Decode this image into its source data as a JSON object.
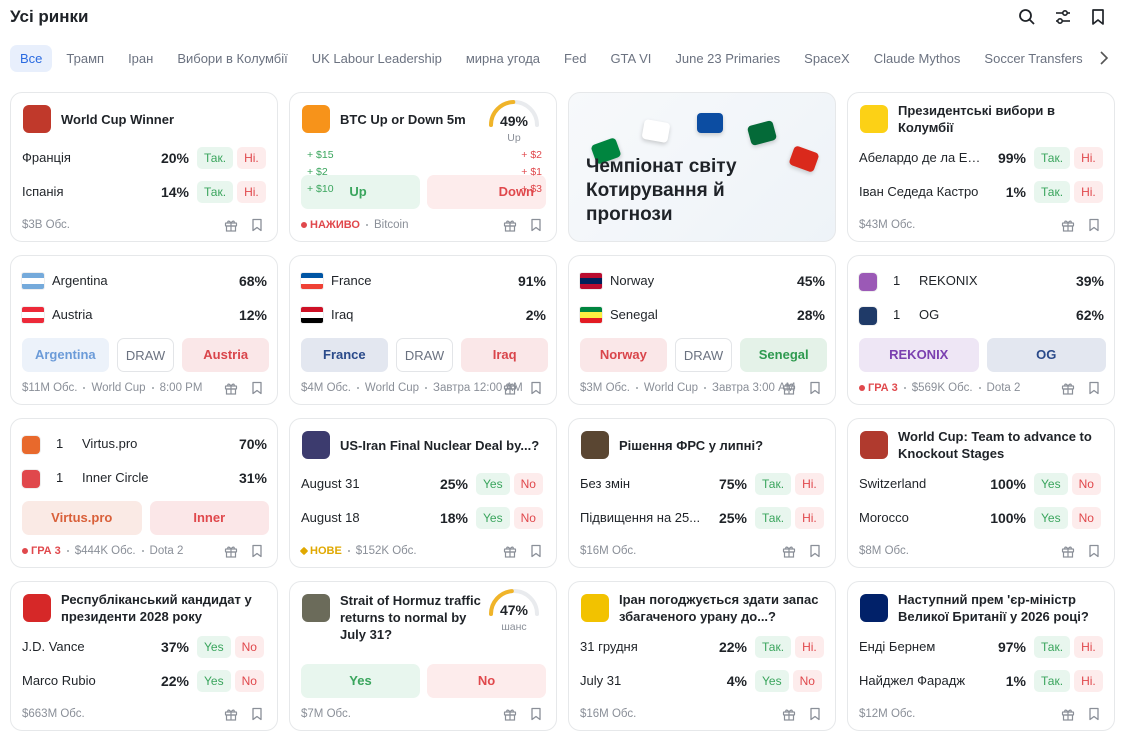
{
  "header": {
    "title": "Усі ринки"
  },
  "tabs": [
    "Все",
    "Трамп",
    "Іран",
    "Вибори в Колумбії",
    "UK Labour Leadership",
    "мирна угода",
    "Fed",
    "GTA VI",
    "June 23 Primaries",
    "SpaceX",
    "Claude Mythos",
    "Soccer Transfers"
  ],
  "cards": [
    {
      "kind": "binary",
      "title": "World Cup Winner",
      "icon": "#c0392b",
      "outcomes": [
        {
          "name": "Франція",
          "chance": "20%",
          "yes": "Так.",
          "no": "Ні."
        },
        {
          "name": "Іспанія",
          "chance": "14%",
          "yes": "Так.",
          "no": "Ні."
        }
      ],
      "footer": {
        "volume": "$3B Обс."
      }
    },
    {
      "kind": "updown",
      "title": "BTC Up or Down 5m",
      "icon": "#f7931a",
      "gauge": {
        "value": 49,
        "label": "49%",
        "caption": "Up",
        "color": "#f0b429"
      },
      "up": {
        "amounts": [
          "+ $15",
          "+ $2",
          "+ $10"
        ],
        "label": "Up"
      },
      "down": {
        "amounts": [
          "+ $2",
          "+ $1",
          "+ $3"
        ],
        "label": "Down"
      },
      "footer": {
        "badge": {
          "text": "НАЖИВО",
          "color": "#e0484c"
        },
        "tags": [
          "Bitcoin"
        ]
      }
    },
    {
      "kind": "banner",
      "title": "Чемпіонат світу Котирування й прогнози"
    },
    {
      "kind": "binary",
      "title": "Президентські вибори в Колумбії",
      "icon": "#fcd116",
      "outcomes": [
        {
          "name": "Абелардо де ла Есп...",
          "chance": "99%",
          "yes": "Так.",
          "no": "Ні."
        },
        {
          "name": "Іван Седеда Кастро",
          "chance": "1%",
          "yes": "Так.",
          "no": "Ні."
        }
      ],
      "footer": {
        "volume": "$43M Обс."
      }
    },
    {
      "kind": "match",
      "teams": [
        {
          "name": "Argentina",
          "chance": "68%",
          "flag": [
            "#75aadb",
            "#ffffff",
            "#75aadb"
          ]
        },
        {
          "name": "Austria",
          "chance": "12%",
          "flag": [
            "#ed2939",
            "#ffffff",
            "#ed2939"
          ]
        }
      ],
      "buttons": [
        {
          "label": "Argentina",
          "color": "#6b9bd8"
        },
        {
          "label": "DRAW",
          "color": "#6b7280"
        },
        {
          "label": "Austria",
          "color": "#d9454b"
        }
      ],
      "footer": {
        "volume": "$11M Обс.",
        "tags": [
          "World Cup",
          "8:00 PM"
        ]
      }
    },
    {
      "kind": "match",
      "teams": [
        {
          "name": "France",
          "chance": "91%",
          "flag": [
            "#0055a4",
            "#ffffff",
            "#ef4135"
          ]
        },
        {
          "name": "Iraq",
          "chance": "2%",
          "flag": [
            "#ce1126",
            "#ffffff",
            "#000000"
          ]
        }
      ],
      "buttons": [
        {
          "label": "France",
          "color": "#2a4a8a"
        },
        {
          "label": "DRAW",
          "color": "#6b7280"
        },
        {
          "label": "Iraq",
          "color": "#d9454b"
        }
      ],
      "footer": {
        "volume": "$4M Обс.",
        "tags": [
          "World Cup",
          "Завтра 12:00 AM"
        ]
      }
    },
    {
      "kind": "match",
      "teams": [
        {
          "name": "Norway",
          "chance": "45%",
          "flag": [
            "#ba0c2f",
            "#00205b",
            "#ba0c2f"
          ]
        },
        {
          "name": "Senegal",
          "chance": "28%",
          "flag": [
            "#00853f",
            "#fdef42",
            "#e31b23"
          ]
        }
      ],
      "buttons": [
        {
          "label": "Norway",
          "color": "#d9454b"
        },
        {
          "label": "DRAW",
          "color": "#6b7280"
        },
        {
          "label": "Senegal",
          "color": "#2e9a4f"
        }
      ],
      "footer": {
        "volume": "$3M Обс.",
        "tags": [
          "World Cup",
          "Завтра 3:00 AM"
        ]
      }
    },
    {
      "kind": "match",
      "teams": [
        {
          "name": "REKONIX",
          "seed": "1",
          "chance": "39%",
          "flag": [
            "#9b59b6"
          ]
        },
        {
          "name": "OG",
          "seed": "1",
          "chance": "62%",
          "flag": [
            "#1f3a68"
          ]
        }
      ],
      "buttons": [
        {
          "label": "REKONIX",
          "color": "#7a3fb0"
        },
        {
          "label": "OG",
          "color": "#2a4a8a"
        }
      ],
      "footer": {
        "badge": {
          "text": "ГРА 3",
          "color": "#e0484c"
        },
        "volume": "$569K Обс.",
        "tags": [
          "Dota 2"
        ]
      }
    },
    {
      "kind": "match",
      "teams": [
        {
          "name": "Virtus.pro",
          "seed": "1",
          "chance": "70%",
          "flag": [
            "#e8692c"
          ]
        },
        {
          "name": "Inner Circle",
          "seed": "1",
          "chance": "31%",
          "flag": [
            "#e0484c"
          ]
        }
      ],
      "buttons": [
        {
          "label": "Virtus.pro",
          "color": "#d9603a"
        },
        {
          "label": "Inner",
          "color": "#e0484c"
        }
      ],
      "footer": {
        "badge": {
          "text": "ГРА 3",
          "color": "#e0484c"
        },
        "volume": "$444K Обс.",
        "tags": [
          "Dota 2"
        ]
      }
    },
    {
      "kind": "binary",
      "title": "US-Iran Final Nuclear Deal by...?",
      "icon": "#3c3b6e",
      "outcomes": [
        {
          "name": "August 31",
          "chance": "25%",
          "yes": "Yes",
          "no": "No"
        },
        {
          "name": "August 18",
          "chance": "18%",
          "yes": "Yes",
          "no": "No"
        }
      ],
      "footer": {
        "badge": {
          "text": "НОВЕ",
          "color": "#e0a800"
        },
        "volume": "$152K Обс."
      }
    },
    {
      "kind": "binary",
      "title": "Рішення ФРС у липні?",
      "icon": "#5a4632",
      "outcomes": [
        {
          "name": "Без змін",
          "chance": "75%",
          "yes": "Так.",
          "no": "Ні."
        },
        {
          "name": "Підвищення на 25...",
          "chance": "25%",
          "yes": "Так.",
          "no": "Ні."
        }
      ],
      "footer": {
        "volume": "$16M Обс."
      }
    },
    {
      "kind": "binary",
      "title": "World Cup: Team to advance to Knockout Stages",
      "icon": "#b03a2e",
      "outcomes": [
        {
          "name": "Switzerland",
          "chance": "100%",
          "yes": "Yes",
          "no": "No"
        },
        {
          "name": "Morocco",
          "chance": "100%",
          "yes": "Yes",
          "no": "No"
        }
      ],
      "footer": {
        "volume": "$8M Обс."
      }
    },
    {
      "kind": "binary",
      "title": "Республіканський кандидат у президенти 2028 року",
      "icon": "#d62828",
      "outcomes": [
        {
          "name": "J.D. Vance",
          "chance": "37%",
          "yes": "Yes",
          "no": "No"
        },
        {
          "name": "Marco Rubio",
          "chance": "22%",
          "yes": "Yes",
          "no": "No"
        }
      ],
      "footer": {
        "volume": "$663M Обс."
      }
    },
    {
      "kind": "gauge",
      "title": "Strait of Hormuz traffic returns to normal by July 31?",
      "icon": "#6b6b5a",
      "gauge": {
        "value": 47,
        "label": "47%",
        "caption": "шанс",
        "color": "#f0b429"
      },
      "yes": "Yes",
      "no": "No",
      "footer": {
        "volume": "$7M Обс."
      }
    },
    {
      "kind": "binary",
      "title": "Іран погоджується здати запас збагаченого урану до...?",
      "icon": "#f2c200",
      "outcomes": [
        {
          "name": "31 грудня",
          "chance": "22%",
          "yes": "Так.",
          "no": "Ні."
        },
        {
          "name": "July 31",
          "chance": "4%",
          "yes": "Yes",
          "no": "No"
        }
      ],
      "footer": {
        "volume": "$16M Обс."
      }
    },
    {
      "kind": "binary",
      "title": "Наступний прем 'єр-міністр Великої Британії у 2026 році?",
      "icon": "#012169",
      "outcomes": [
        {
          "name": "Енді Бернем",
          "chance": "97%",
          "yes": "Так.",
          "no": "Ні."
        },
        {
          "name": "Найджел Фарадж",
          "chance": "1%",
          "yes": "Так.",
          "no": "Ні."
        }
      ],
      "footer": {
        "volume": "$12M Обс."
      }
    }
  ]
}
